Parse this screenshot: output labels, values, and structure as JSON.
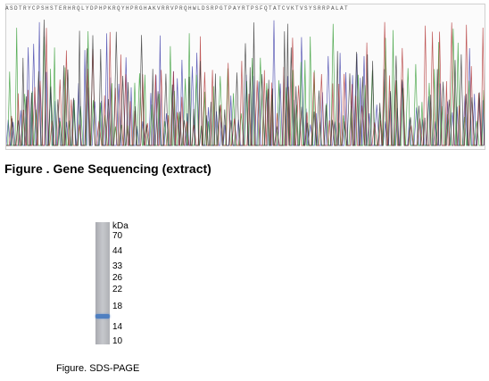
{
  "sequencing_figure": {
    "title": "Figure . Gene Sequencing (extract)",
    "trace_colors": [
      "#3a3aa8",
      "#2e9a2e",
      "#b03030",
      "#303030"
    ],
    "sequence_letters": "ASDTRYCPSHSTERHRQLYDPHPKRQYHPRGHAKVRRVPRQHWLDSRPGTPAYRTPSFQTATCVKTVSYSRRPALAT"
  },
  "sds_page_figure": {
    "caption": "Figure. SDS-PAGE",
    "unit": "kDa",
    "markers": [
      "70",
      "44",
      "33",
      "26",
      "22",
      "18",
      "14",
      "10"
    ],
    "band_kda": 16
  }
}
